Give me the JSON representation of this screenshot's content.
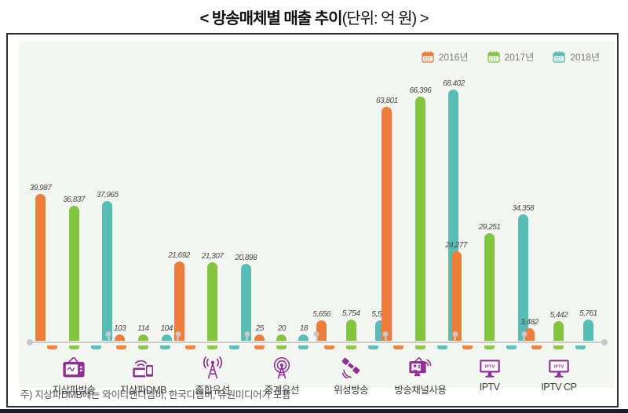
{
  "title": {
    "main": "< 방송매체별 매출 추이",
    "unit": "(단위: 억 원) >"
  },
  "legend": [
    {
      "label": "2016년",
      "color": "#EF7D3A"
    },
    {
      "label": "2017년",
      "color": "#85C441"
    },
    {
      "label": "2018년",
      "color": "#56BEB5"
    }
  ],
  "chart_data": {
    "type": "bar",
    "title": "방송매체별 매출 추이",
    "unit": "억 원",
    "categories": [
      "지상파방송",
      "지상파DMB",
      "종합유선",
      "중계유선",
      "위성방송",
      "방송채널사용",
      "IPTV",
      "IPTV CP"
    ],
    "category_icons": [
      "tv-retro-icon",
      "dmb-devices-icon",
      "broadcast-tower-icon",
      "relay-antenna-icon",
      "satellite-icon",
      "broadcast-channel-icon",
      "iptv-monitor-icon",
      "iptv-monitor-icon"
    ],
    "series": [
      {
        "name": "2016년",
        "color": "#EF7D3A",
        "values": [
          39987,
          103,
          21692,
          25,
          5656,
          63801,
          24277,
          3482
        ]
      },
      {
        "name": "2017년",
        "color": "#85C441",
        "values": [
          36837,
          114,
          21307,
          20,
          5754,
          66396,
          29251,
          5442
        ]
      },
      {
        "name": "2018년",
        "color": "#56BEB5",
        "values": [
          37965,
          104,
          20898,
          18,
          5551,
          68402,
          34358,
          5761
        ]
      }
    ],
    "ylim": [
      0,
      68402
    ],
    "grid": false,
    "legend_position": "top-right"
  },
  "icons": {
    "iptv_screen_text": "IPTV",
    "icon_color": "#8E3192",
    "calendar_icon": "calendar"
  },
  "note": "주) 지상파DMB에는 와이티엔디엠비, 한국디엠비, 유원미디어가 포함",
  "colors": {
    "plot_background": "#F4F6F2",
    "baseline": "#CBCBCB",
    "bottom_rule": "#1A1D2B",
    "value_label": "#4A4A4A",
    "category_label": "#3D3D3D",
    "legend_text": "#7A7A7A",
    "frame_border": "#2E2E2E"
  }
}
